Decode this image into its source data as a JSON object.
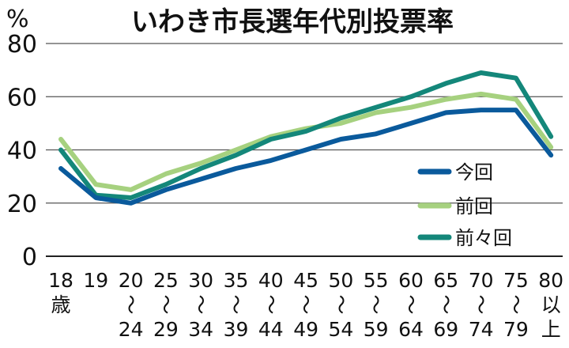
{
  "chart_data": {
    "type": "line",
    "title": "いわき市長選年代別投票率",
    "y_unit_label": "%",
    "ylim": [
      0,
      80
    ],
    "yticks": [
      0,
      20,
      40,
      60,
      80
    ],
    "grid": true,
    "legend_position": "right",
    "categories": [
      {
        "lines": [
          "18",
          "歳"
        ]
      },
      {
        "lines": [
          "19"
        ]
      },
      {
        "lines": [
          "20",
          "～",
          "24"
        ]
      },
      {
        "lines": [
          "25",
          "～",
          "29"
        ]
      },
      {
        "lines": [
          "30",
          "～",
          "34"
        ]
      },
      {
        "lines": [
          "35",
          "～",
          "39"
        ]
      },
      {
        "lines": [
          "40",
          "～",
          "44"
        ]
      },
      {
        "lines": [
          "45",
          "～",
          "49"
        ]
      },
      {
        "lines": [
          "50",
          "～",
          "54"
        ]
      },
      {
        "lines": [
          "55",
          "～",
          "59"
        ]
      },
      {
        "lines": [
          "60",
          "～",
          "64"
        ]
      },
      {
        "lines": [
          "65",
          "～",
          "69"
        ]
      },
      {
        "lines": [
          "70",
          "～",
          "74"
        ]
      },
      {
        "lines": [
          "75",
          "～",
          "79"
        ]
      },
      {
        "lines": [
          "80",
          "以",
          "上"
        ]
      }
    ],
    "series": [
      {
        "name": "今回",
        "color": "#0a5a9c",
        "values": [
          33,
          22,
          20,
          25,
          29,
          33,
          36,
          40,
          44,
          46,
          50,
          54,
          55,
          55,
          38
        ]
      },
      {
        "name": "前回",
        "color": "#a6d17f",
        "values": [
          44,
          27,
          25,
          31,
          35,
          40,
          45,
          48,
          50,
          54,
          56,
          59,
          61,
          59,
          41
        ]
      },
      {
        "name": "前々回",
        "color": "#14877a",
        "values": [
          40,
          23,
          22,
          27,
          33,
          38,
          44,
          47,
          52,
          56,
          60,
          65,
          69,
          67,
          45
        ]
      }
    ]
  }
}
